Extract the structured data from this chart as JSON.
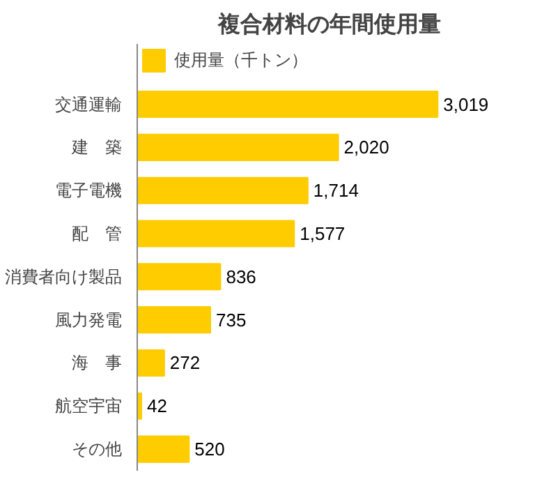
{
  "chart_data": {
    "type": "bar",
    "orientation": "horizontal",
    "title": "複合材料の年間使用量",
    "categories": [
      "交通運輸",
      "建　築",
      "電子電機",
      "配　管",
      "消費者向け製品",
      "風力発電",
      "海　事",
      "航空宇宙",
      "その他"
    ],
    "series": [
      {
        "name": "使用量（千トン）",
        "color": "#ffcc00",
        "values": [
          3019,
          2020,
          1714,
          1577,
          836,
          735,
          272,
          42,
          520
        ],
        "value_labels": [
          "3,019",
          "2,020",
          "1,714",
          "1,577",
          "836",
          "735",
          "272",
          "42",
          "520"
        ]
      }
    ],
    "legend": "top left"
  }
}
